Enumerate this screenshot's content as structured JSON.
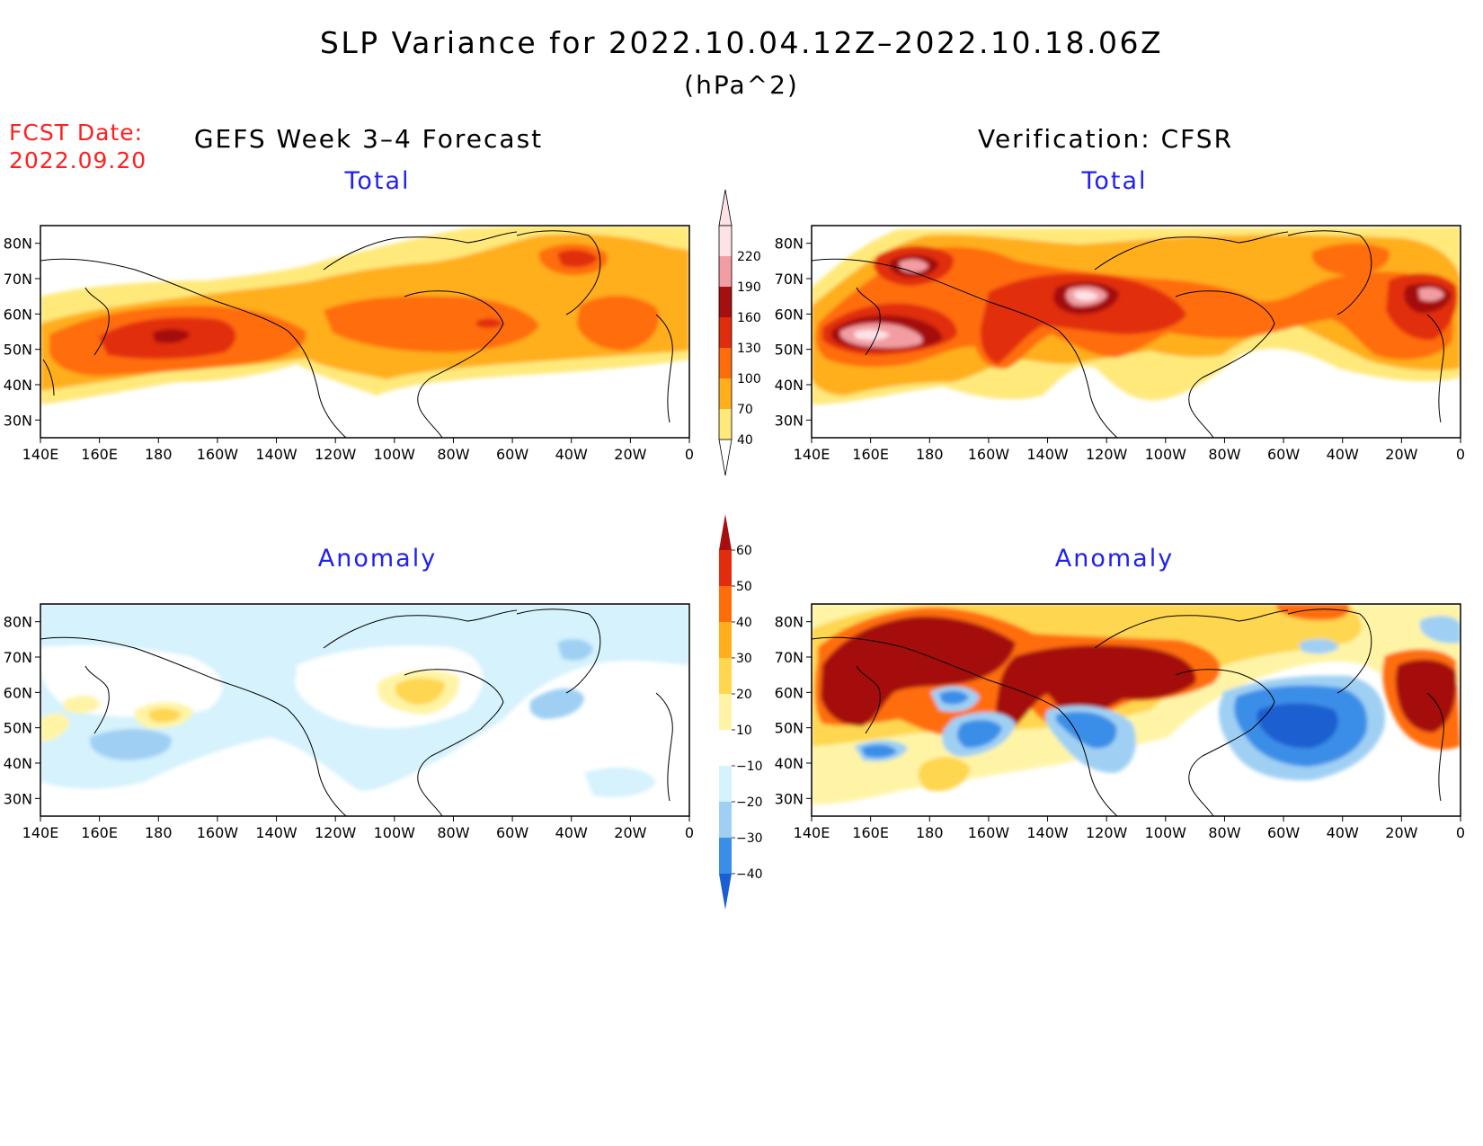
{
  "header": {
    "title": "SLP Variance for 2022.10.04.12Z–2022.10.18.06Z",
    "units": "(hPa^2)",
    "fcst_label": "FCST Date:",
    "fcst_date": "2022.09.20"
  },
  "columns": {
    "left": "GEFS Week 3–4 Forecast",
    "right": "Verification: CFSR"
  },
  "panels": [
    {
      "id": "gefs-total",
      "title": "Total"
    },
    {
      "id": "cfsr-total",
      "title": "Total"
    },
    {
      "id": "gefs-anomaly",
      "title": "Anomaly"
    },
    {
      "id": "cfsr-anomaly",
      "title": "Anomaly"
    }
  ],
  "axes": {
    "lat_labels": [
      "80N",
      "70N",
      "60N",
      "50N",
      "40N",
      "30N"
    ],
    "lat_values": [
      80,
      70,
      60,
      50,
      40,
      30
    ],
    "lon_labels": [
      "140E",
      "160E",
      "180",
      "160W",
      "140W",
      "120W",
      "100W",
      "80W",
      "60W",
      "40W",
      "20W",
      "0"
    ],
    "lat_range": [
      25,
      85
    ],
    "lon_range": [
      "140E",
      "0"
    ]
  },
  "colorbars": {
    "total": {
      "levels": [
        "40",
        "70",
        "100",
        "130",
        "160",
        "190",
        "220"
      ],
      "colors": [
        "#ffe97a",
        "#ffae1c",
        "#ff6d0a",
        "#e12d0e",
        "#a50f0f",
        "#f29da2",
        "#fde3e6"
      ]
    },
    "anomaly": {
      "levels": [
        "60",
        "50",
        "40",
        "30",
        "20",
        "10",
        "−10",
        "−20",
        "−30",
        "−40"
      ],
      "colors": [
        "#a50f0f",
        "#e12d0e",
        "#ff6d0a",
        "#ffae1c",
        "#ffd650",
        "#fff4a6",
        "#ffffff",
        "#d5f2fd",
        "#9fd0f3",
        "#3b8ee8",
        "#1a5fd1"
      ]
    }
  }
}
